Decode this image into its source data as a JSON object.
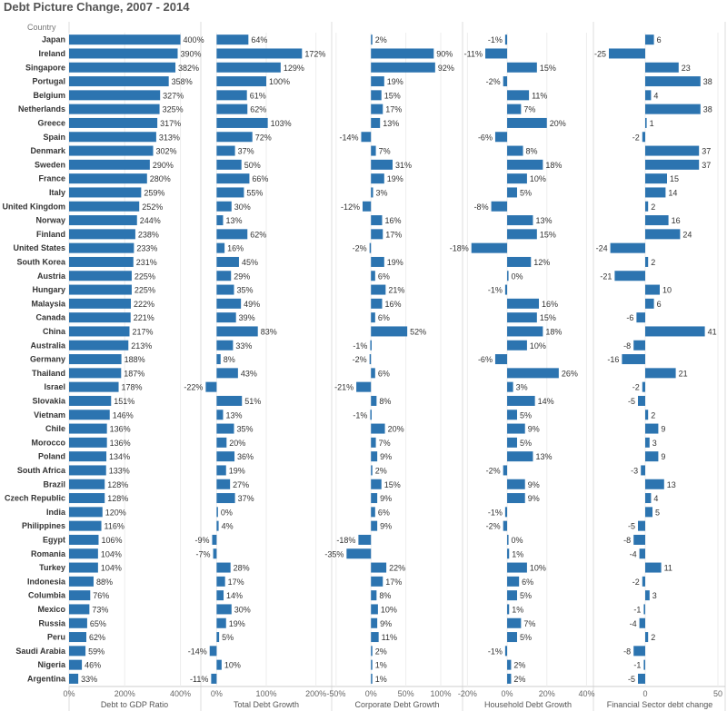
{
  "chart_data": {
    "type": "bar",
    "orientation": "horizontal",
    "title": "Debt Picture Change, 2007 - 2014",
    "row_header": "Country",
    "bar_color": "#2c74b0",
    "categories": [
      "Japan",
      "Ireland",
      "Singapore",
      "Portugal",
      "Belgium",
      "Netherlands",
      "Greece",
      "Spain",
      "Denmark",
      "Sweden",
      "France",
      "Italy",
      "United Kingdom",
      "Norway",
      "Finland",
      "United States",
      "South Korea",
      "Austria",
      "Hungary",
      "Malaysia",
      "Canada",
      "China",
      "Australia",
      "Germany",
      "Thailand",
      "Israel",
      "Slovakia",
      "Vietnam",
      "Chile",
      "Morocco",
      "Poland",
      "South Africa",
      "Brazil",
      "Czech Republic",
      "India",
      "Philippines",
      "Egypt",
      "Romania",
      "Turkey",
      "Indonesia",
      "Columbia",
      "Mexico",
      "Russia",
      "Peru",
      "Saudi Arabia",
      "Nigeria",
      "Argentina"
    ],
    "panels": [
      {
        "name": "Debt to GDP Ratio",
        "suffix": "%",
        "xlim": [
          0,
          470
        ],
        "ticks": [
          {
            "v": 0,
            "t": "0%"
          },
          {
            "v": 200,
            "t": "200%"
          },
          {
            "v": 400,
            "t": "400%"
          }
        ],
        "values": [
          400,
          390,
          382,
          358,
          327,
          325,
          317,
          313,
          302,
          290,
          280,
          259,
          252,
          244,
          238,
          233,
          231,
          225,
          225,
          222,
          221,
          217,
          213,
          188,
          187,
          178,
          151,
          146,
          136,
          136,
          134,
          133,
          128,
          128,
          120,
          116,
          106,
          104,
          104,
          88,
          76,
          73,
          65,
          62,
          59,
          46,
          33
        ]
      },
      {
        "name": "Total Debt Growth",
        "suffix": "%",
        "xlim": [
          -30,
          230
        ],
        "ticks": [
          {
            "v": 0,
            "t": "0%"
          },
          {
            "v": 100,
            "t": "100%"
          },
          {
            "v": 200,
            "t": "200%"
          }
        ],
        "values": [
          64,
          172,
          129,
          100,
          61,
          62,
          103,
          72,
          37,
          50,
          66,
          55,
          30,
          13,
          62,
          16,
          45,
          29,
          35,
          49,
          39,
          83,
          33,
          8,
          43,
          -22,
          51,
          13,
          35,
          20,
          36,
          19,
          27,
          37,
          0,
          4,
          -9,
          -7,
          28,
          17,
          14,
          30,
          19,
          5,
          -14,
          10,
          -11
        ]
      },
      {
        "name": "Corporate Debt Growth",
        "suffix": "%",
        "xlim": [
          -55,
          130
        ],
        "ticks": [
          {
            "v": -50,
            "t": "-50%"
          },
          {
            "v": 0,
            "t": "0%"
          },
          {
            "v": 50,
            "t": "50%"
          },
          {
            "v": 100,
            "t": "100%"
          }
        ],
        "values": [
          2,
          90,
          92,
          19,
          15,
          17,
          13,
          -14,
          7,
          31,
          19,
          3,
          -12,
          16,
          17,
          -2,
          19,
          6,
          21,
          16,
          6,
          52,
          -1,
          -2,
          6,
          -21,
          8,
          -1,
          20,
          7,
          9,
          2,
          15,
          9,
          6,
          9,
          -18,
          -35,
          22,
          17,
          8,
          10,
          9,
          11,
          2,
          1,
          1
        ]
      },
      {
        "name": "Household Debt Growth",
        "suffix": "%",
        "xlim": [
          -22,
          43
        ],
        "ticks": [
          {
            "v": -20,
            "t": "-20%"
          },
          {
            "v": 0,
            "t": "0%"
          },
          {
            "v": 20,
            "t": "20%"
          },
          {
            "v": 40,
            "t": "40%"
          }
        ],
        "values": [
          -1,
          -11,
          15,
          -2,
          11,
          7,
          20,
          -6,
          8,
          18,
          10,
          5,
          -8,
          13,
          15,
          -18,
          12,
          0,
          -1,
          16,
          15,
          18,
          10,
          -6,
          26,
          3,
          14,
          5,
          9,
          5,
          13,
          -2,
          9,
          9,
          -1,
          -2,
          0,
          1,
          10,
          6,
          5,
          1,
          7,
          5,
          -1,
          2,
          2
        ]
      },
      {
        "name": "Financial Sector debt change",
        "suffix": "",
        "xlim": [
          -35,
          55
        ],
        "ticks": [
          {
            "v": 0,
            "t": "0"
          },
          {
            "v": 50,
            "t": "50"
          }
        ],
        "values": [
          6,
          -25,
          23,
          38,
          4,
          38,
          1,
          -2,
          37,
          37,
          15,
          14,
          2,
          16,
          24,
          -24,
          2,
          -21,
          10,
          6,
          -6,
          41,
          -8,
          -16,
          21,
          -2,
          -5,
          2,
          9,
          3,
          9,
          -3,
          13,
          4,
          5,
          -5,
          -8,
          -4,
          11,
          -2,
          3,
          -1,
          -4,
          2,
          -8,
          -1,
          -5
        ]
      }
    ]
  }
}
